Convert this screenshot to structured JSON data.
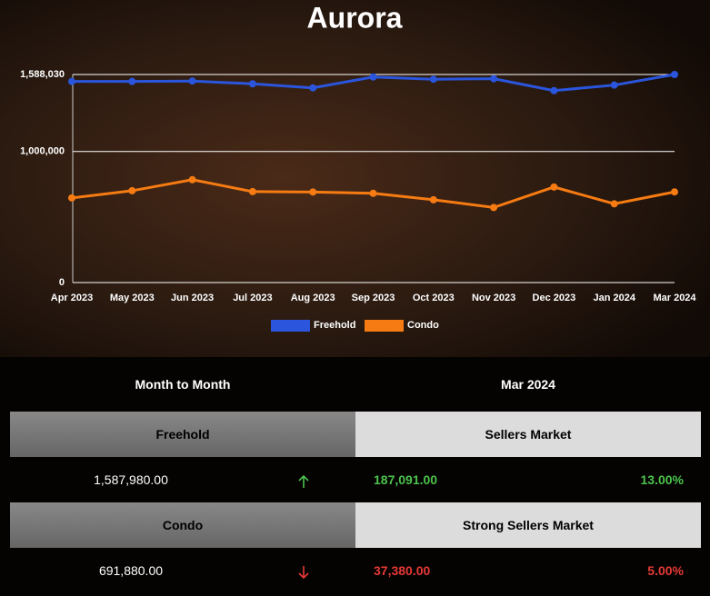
{
  "chart_data": {
    "type": "line",
    "title": "Aurora",
    "categories": [
      "Apr 2023",
      "May 2023",
      "Jun 2023",
      "Jul 2023",
      "Aug 2023",
      "Sep 2023",
      "Oct 2023",
      "Nov 2023",
      "Dec 2023",
      "Jan 2024",
      "Mar 2024"
    ],
    "series": [
      {
        "name": "Freehold",
        "color": "#2a55dc",
        "values": [
          1535000,
          1535000,
          1538000,
          1517000,
          1486000,
          1569000,
          1552000,
          1556000,
          1465000,
          1507000,
          1587980
        ]
      },
      {
        "name": "Condo",
        "color": "#f67b12",
        "values": [
          646000,
          701000,
          785000,
          694000,
          691000,
          681000,
          632000,
          573000,
          729000,
          601000,
          691880
        ]
      }
    ],
    "ylim": [
      0,
      1588030
    ],
    "yticks": [
      0,
      {
        "value": 1000000,
        "label": "1,000,000"
      },
      {
        "value": 1588030,
        "label": "1,588,030"
      }
    ],
    "grid": true,
    "legend": "bottom"
  },
  "table": {
    "header": [
      "Month to Month",
      "Mar 2024"
    ],
    "rows": [
      {
        "type": "Freehold",
        "market": "Sellers Market",
        "price": "1,587,980.00",
        "change": "187,091.00",
        "percent": "13.00%"
      },
      {
        "type": "Condo",
        "market": "Strong Sellers Market",
        "price": "691,880.00",
        "change": "37,380.00",
        "percent": "5.00%"
      }
    ]
  }
}
